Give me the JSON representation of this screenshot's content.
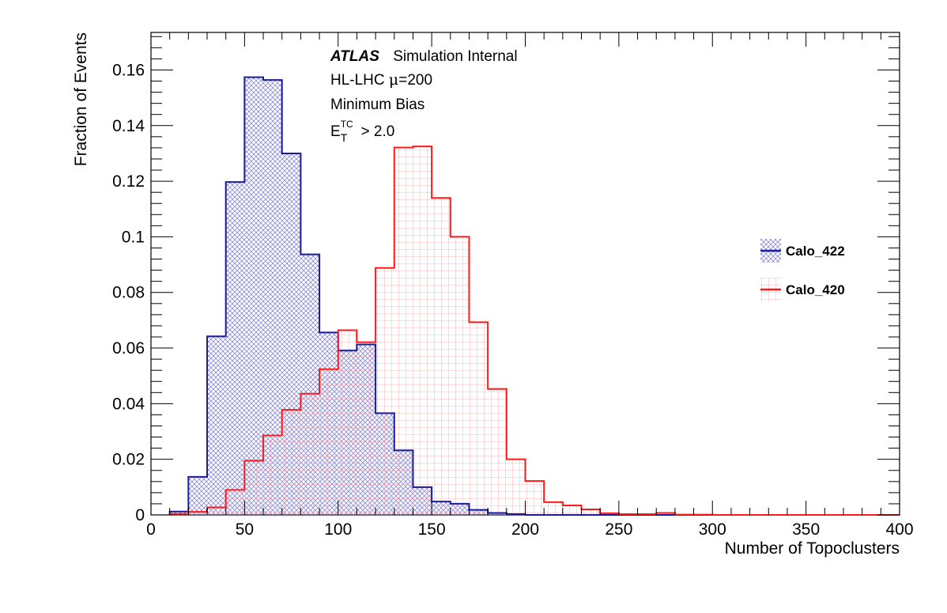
{
  "colors": {
    "blue": "#1a1a9e",
    "red": "#ff1a1a",
    "frame": "#000000"
  },
  "annotations": {
    "atlas_label": "ATLAS",
    "atlas_suffix": "Simulation Internal",
    "line2_prefix": "HL-LHC ",
    "line2_mu": "μ",
    "line2_suffix": "=200",
    "line3": "Minimum Bias",
    "line4_base": "E",
    "line4_sup": "TC",
    "line4_sub": "T",
    "line4_rest": " > 2.0"
  },
  "chart_data": {
    "type": "histogram",
    "xlabel": "Number of Topoclusters",
    "ylabel": "Fraction of Events",
    "xlim": [
      0,
      400
    ],
    "ylim": [
      0,
      0.1735
    ],
    "xticks": [
      0,
      50,
      100,
      150,
      200,
      250,
      300,
      350,
      400
    ],
    "xtick_labels": [
      "0",
      "50",
      "100",
      "150",
      "200",
      "250",
      "300",
      "350",
      "400"
    ],
    "yticks": [
      0,
      0.02,
      0.04,
      0.06,
      0.08,
      0.1,
      0.12,
      0.14,
      0.16
    ],
    "ytick_labels": [
      "0",
      "0.02",
      "0.04",
      "0.06",
      "0.08",
      "0.1",
      "0.12",
      "0.14",
      "0.16"
    ],
    "bin_width": 10,
    "bin_edges_start": 0,
    "legend_position": "right",
    "series": [
      {
        "name": "Calo_422",
        "color": "#1a1a9e",
        "fill": "hatched",
        "values": [
          0,
          0.0012,
          0.0137,
          0.0642,
          0.1197,
          0.1574,
          0.1564,
          0.13,
          0.0937,
          0.0656,
          0.0591,
          0.0613,
          0.0366,
          0.0232,
          0.01,
          0.0048,
          0.004,
          0.0018,
          0.0007,
          0.0003,
          0,
          0,
          0,
          0,
          0,
          0,
          0,
          0,
          0,
          0,
          0,
          0,
          0,
          0,
          0,
          0,
          0,
          0,
          0,
          0
        ]
      },
      {
        "name": "Calo_420",
        "color": "#ff1a1a",
        "fill": "grid",
        "values": [
          0,
          0.0004,
          0.0011,
          0.0027,
          0.009,
          0.0195,
          0.0286,
          0.0378,
          0.0436,
          0.0524,
          0.0664,
          0.0621,
          0.0888,
          0.1321,
          0.1325,
          0.114,
          0.1,
          0.0693,
          0.0453,
          0.02,
          0.0122,
          0.0046,
          0.0034,
          0.002,
          0.0006,
          0.0003,
          0.0003,
          0.0007,
          0.0001,
          0.0001,
          0,
          0,
          0,
          0,
          0,
          0,
          0,
          0,
          0,
          0
        ]
      }
    ]
  }
}
